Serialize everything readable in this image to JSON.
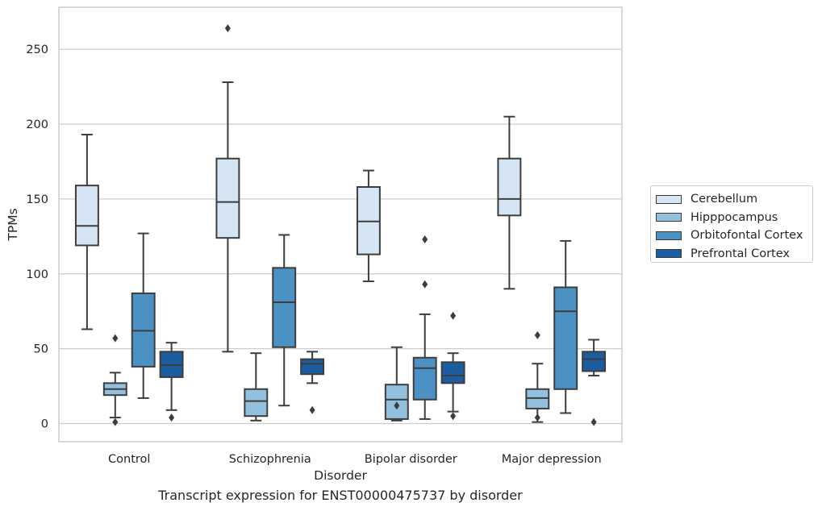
{
  "caption": "Transcript expression for ENST00000475737 by disorder",
  "legend": {
    "items": [
      {
        "label": "Cerebellum",
        "color": "#d6e5f4"
      },
      {
        "label": "Hipppocampus",
        "color": "#94c0df"
      },
      {
        "label": "Orbitofontal Cortex",
        "color": "#4c91c4"
      },
      {
        "label": "Prefrontal Cortex",
        "color": "#1b5d9f"
      }
    ]
  },
  "chart_data": {
    "type": "box",
    "xlabel": "Disorder",
    "ylabel": "TPMs",
    "categories": [
      "Control",
      "Schizophrenia",
      "Bipolar disorder",
      "Major depression"
    ],
    "yticks": [
      0,
      50,
      100,
      150,
      200,
      250
    ],
    "ylim": [
      -12,
      279
    ],
    "grid": "horizontal",
    "legend_position": "right",
    "series": [
      {
        "name": "Cerebellum",
        "color": "#d6e5f4",
        "boxes": [
          {
            "whislo": 63,
            "q1": 119,
            "med": 132,
            "q3": 159,
            "whishi": 193,
            "fliers": []
          },
          {
            "whislo": 48,
            "q1": 124,
            "med": 148,
            "q3": 177,
            "whishi": 228,
            "fliers": [
              264
            ]
          },
          {
            "whislo": 95,
            "q1": 113,
            "med": 135,
            "q3": 158,
            "whishi": 169,
            "fliers": []
          },
          {
            "whislo": 90,
            "q1": 139,
            "med": 150,
            "q3": 177,
            "whishi": 205,
            "fliers": []
          }
        ]
      },
      {
        "name": "Hipppocampus",
        "color": "#94c0df",
        "boxes": [
          {
            "whislo": 4,
            "q1": 19,
            "med": 23,
            "q3": 27,
            "whishi": 34,
            "fliers": [
              57,
              1
            ]
          },
          {
            "whislo": 2,
            "q1": 5,
            "med": 15,
            "q3": 23,
            "whishi": 47,
            "fliers": []
          },
          {
            "whislo": 2,
            "q1": 3,
            "med": 16,
            "q3": 26,
            "whishi": 51,
            "fliers": [
              12
            ]
          },
          {
            "whislo": 1,
            "q1": 10,
            "med": 17,
            "q3": 23,
            "whishi": 40,
            "fliers": [
              59,
              4
            ]
          }
        ]
      },
      {
        "name": "Orbitofontal Cortex",
        "color": "#4c91c4",
        "boxes": [
          {
            "whislo": 17,
            "q1": 38,
            "med": 62,
            "q3": 87,
            "whishi": 127,
            "fliers": []
          },
          {
            "whislo": 12,
            "q1": 51,
            "med": 81,
            "q3": 104,
            "whishi": 126,
            "fliers": []
          },
          {
            "whislo": 3,
            "q1": 16,
            "med": 37,
            "q3": 44,
            "whishi": 73,
            "fliers": [
              123,
              93
            ]
          },
          {
            "whislo": 7,
            "q1": 23,
            "med": 75,
            "q3": 91,
            "whishi": 122,
            "fliers": []
          }
        ]
      },
      {
        "name": "Prefrontal Cortex",
        "color": "#1b5d9f",
        "boxes": [
          {
            "whislo": 9,
            "q1": 31,
            "med": 39,
            "q3": 48,
            "whishi": 54,
            "fliers": [
              4
            ]
          },
          {
            "whislo": 27,
            "q1": 33,
            "med": 40,
            "q3": 43,
            "whishi": 48,
            "fliers": [
              9
            ]
          },
          {
            "whislo": 8,
            "q1": 27,
            "med": 32,
            "q3": 41,
            "whishi": 47,
            "fliers": [
              72,
              5
            ]
          },
          {
            "whislo": 32,
            "q1": 35,
            "med": 43,
            "q3": 48,
            "whishi": 56,
            "fliers": [
              1
            ]
          }
        ]
      }
    ]
  }
}
